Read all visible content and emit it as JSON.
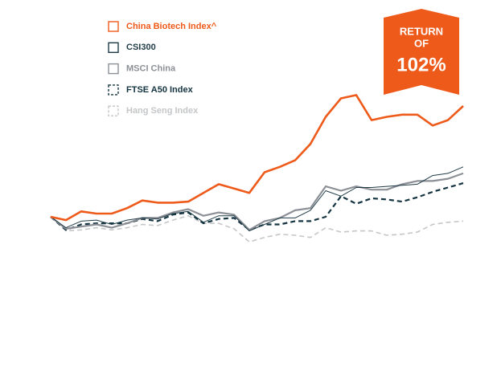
{
  "chart_data": {
    "type": "line",
    "annotations": [
      "RETURN",
      "OF",
      "102%"
    ],
    "badge_color": "#ee5a1a",
    "ylim": [
      50,
      220
    ],
    "series": [
      {
        "name": "China Biotech Index^",
        "color": "#ee5a1a",
        "dashed": false,
        "values": [
          100,
          97,
          105,
          103,
          103,
          108,
          115,
          113,
          113,
          114,
          122,
          130,
          126,
          122,
          141,
          146,
          152,
          167,
          192,
          209,
          212,
          189,
          192,
          194,
          194,
          184,
          189,
          202
        ]
      },
      {
        "name": "CSI300",
        "color": "#1f3b47",
        "dashed": false,
        "values": [
          100,
          90,
          96,
          97,
          93,
          97,
          99,
          98,
          103,
          105,
          95,
          101,
          101,
          87,
          93,
          99,
          99,
          106,
          124,
          119,
          127,
          127,
          128,
          129,
          130,
          138,
          140,
          146
        ]
      },
      {
        "name": "MSCI China",
        "color": "#8c9096",
        "dashed": false,
        "values": [
          100,
          89,
          91,
          93,
          90,
          94,
          99,
          99,
          104,
          107,
          101,
          104,
          102,
          88,
          96,
          99,
          106,
          108,
          128,
          124,
          128,
          125,
          125,
          130,
          133,
          133,
          135,
          140
        ]
      },
      {
        "name": "FTSE A50 Index",
        "color": "#143441",
        "dashed": true,
        "values": [
          100,
          88,
          93,
          94,
          94,
          94,
          98,
          96,
          102,
          104,
          94,
          98,
          99,
          88,
          93,
          93,
          96,
          96,
          100,
          119,
          112,
          117,
          116,
          114,
          118,
          123,
          127,
          131
        ]
      },
      {
        "name": "Hang Seng Index",
        "color": "#c4c6c8",
        "dashed": true,
        "values": [
          100,
          87,
          88,
          90,
          88,
          90,
          93,
          92,
          97,
          101,
          94,
          94,
          89,
          77,
          81,
          84,
          83,
          81,
          90,
          86,
          87,
          87,
          83,
          84,
          86,
          93,
          95,
          96
        ]
      }
    ]
  }
}
